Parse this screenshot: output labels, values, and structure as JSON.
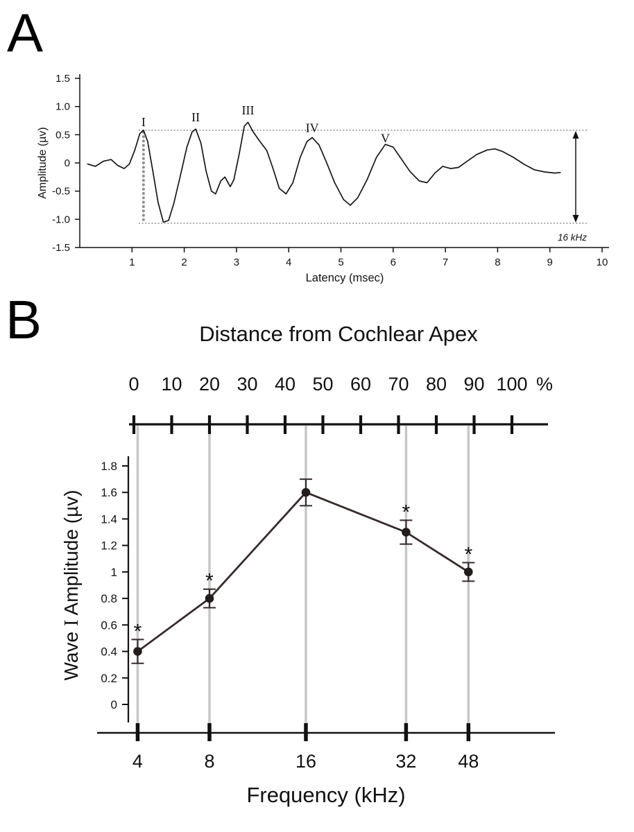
{
  "panels": {
    "a": {
      "letter": "A"
    },
    "b": {
      "letter": "B"
    }
  },
  "chart_data": [
    {
      "panel": "A",
      "type": "line",
      "description": "ABR waveform trace",
      "xlabel": "Latency (msec)",
      "ylabel": "Amplitude (µv)",
      "xlim": [
        0,
        10
      ],
      "ylim": [
        -1.5,
        1.5
      ],
      "x_ticks": [
        1,
        2,
        3,
        4,
        5,
        6,
        7,
        8,
        9,
        10
      ],
      "y_ticks": [
        {
          "v": 1.5,
          "label": "1.5"
        },
        {
          "v": 1.0,
          "label": "1.0"
        },
        {
          "v": 0.5,
          "label": "0.5"
        },
        {
          "v": 0,
          "label": "0"
        },
        {
          "v": -0.5,
          "label": "-0.5"
        },
        {
          "v": -1.0,
          "label": "-1.0"
        },
        {
          "v": -1.5,
          "label": "-1.5"
        }
      ],
      "wave_peak_labels": [
        {
          "label": "I",
          "x": 1.22,
          "y": 0.65
        },
        {
          "label": "II",
          "x": 2.22,
          "y": 0.74
        },
        {
          "label": "III",
          "x": 3.22,
          "y": 0.86
        },
        {
          "label": "IV",
          "x": 4.45,
          "y": 0.55
        },
        {
          "label": "V",
          "x": 5.85,
          "y": 0.36
        }
      ],
      "amplitude_reference": {
        "top": 0.58,
        "bottom": -1.07,
        "marker_x": 1.22
      },
      "stimulus_label": "16 kHz",
      "series": [
        {
          "name": "abr-waveform",
          "points": [
            [
              0.15,
              -0.02
            ],
            [
              0.3,
              -0.06
            ],
            [
              0.45,
              0.03
            ],
            [
              0.6,
              0.06
            ],
            [
              0.72,
              -0.04
            ],
            [
              0.85,
              -0.1
            ],
            [
              0.95,
              -0.02
            ],
            [
              1.05,
              0.22
            ],
            [
              1.15,
              0.52
            ],
            [
              1.22,
              0.58
            ],
            [
              1.3,
              0.38
            ],
            [
              1.4,
              -0.15
            ],
            [
              1.5,
              -0.7
            ],
            [
              1.6,
              -1.05
            ],
            [
              1.7,
              -1.02
            ],
            [
              1.8,
              -0.72
            ],
            [
              1.92,
              -0.25
            ],
            [
              2.05,
              0.28
            ],
            [
              2.15,
              0.55
            ],
            [
              2.22,
              0.6
            ],
            [
              2.32,
              0.35
            ],
            [
              2.42,
              -0.15
            ],
            [
              2.52,
              -0.5
            ],
            [
              2.6,
              -0.55
            ],
            [
              2.7,
              -0.32
            ],
            [
              2.78,
              -0.25
            ],
            [
              2.88,
              -0.42
            ],
            [
              2.95,
              -0.3
            ],
            [
              3.05,
              0.15
            ],
            [
              3.15,
              0.65
            ],
            [
              3.22,
              0.72
            ],
            [
              3.32,
              0.55
            ],
            [
              3.45,
              0.38
            ],
            [
              3.58,
              0.22
            ],
            [
              3.7,
              -0.1
            ],
            [
              3.82,
              -0.45
            ],
            [
              3.95,
              -0.55
            ],
            [
              4.08,
              -0.35
            ],
            [
              4.22,
              0.1
            ],
            [
              4.35,
              0.38
            ],
            [
              4.45,
              0.45
            ],
            [
              4.58,
              0.32
            ],
            [
              4.72,
              0.02
            ],
            [
              4.88,
              -0.35
            ],
            [
              5.05,
              -0.65
            ],
            [
              5.18,
              -0.75
            ],
            [
              5.32,
              -0.62
            ],
            [
              5.5,
              -0.3
            ],
            [
              5.68,
              0.1
            ],
            [
              5.85,
              0.33
            ],
            [
              6.0,
              0.28
            ],
            [
              6.15,
              0.08
            ],
            [
              6.32,
              -0.15
            ],
            [
              6.5,
              -0.32
            ],
            [
              6.65,
              -0.35
            ],
            [
              6.8,
              -0.18
            ],
            [
              6.95,
              -0.06
            ],
            [
              7.1,
              -0.1
            ],
            [
              7.25,
              -0.08
            ],
            [
              7.4,
              0.02
            ],
            [
              7.6,
              0.15
            ],
            [
              7.8,
              0.23
            ],
            [
              7.95,
              0.25
            ],
            [
              8.1,
              0.2
            ],
            [
              8.3,
              0.1
            ],
            [
              8.5,
              -0.02
            ],
            [
              8.7,
              -0.12
            ],
            [
              8.9,
              -0.16
            ],
            [
              9.1,
              -0.18
            ],
            [
              9.2,
              -0.17
            ]
          ]
        }
      ]
    },
    {
      "panel": "B",
      "type": "line",
      "top_axis": {
        "title": "Distance from Cochlear Apex",
        "tick_values": [
          0,
          10,
          20,
          30,
          40,
          50,
          60,
          70,
          80,
          90,
          100
        ],
        "unit_label": "%"
      },
      "xlabel": "Frequency (kHz)",
      "ylabel": "Wave I Amplitude (µv)",
      "ylabel_parts": [
        {
          "text": "Wave ",
          "serif": false
        },
        {
          "text": "I",
          "serif": true
        },
        {
          "text": " Amplitude (µv)",
          "serif": false
        }
      ],
      "ylim": [
        0,
        1.8
      ],
      "y_ticks": [
        {
          "v": 0,
          "label": "0"
        },
        {
          "v": 0.2,
          "label": "0.2"
        },
        {
          "v": 0.4,
          "label": "0.4"
        },
        {
          "v": 0.6,
          "label": "0.6"
        },
        {
          "v": 0.8,
          "label": "0.8"
        },
        {
          "v": 1.0,
          "label": "1"
        },
        {
          "v": 1.2,
          "label": "1.2"
        },
        {
          "v": 1.4,
          "label": "1.4"
        },
        {
          "v": 1.6,
          "label": "1.6"
        },
        {
          "v": 1.8,
          "label": "1.8"
        }
      ],
      "sig_symbol": "*",
      "points": [
        {
          "freq": "4",
          "percent": 1,
          "value": 0.4,
          "error": 0.09,
          "significant": true
        },
        {
          "freq": "8",
          "percent": 20,
          "value": 0.8,
          "error": 0.07,
          "significant": true
        },
        {
          "freq": "16",
          "percent": 45.5,
          "value": 1.6,
          "error": 0.1,
          "significant": false
        },
        {
          "freq": "32",
          "percent": 72,
          "value": 1.3,
          "error": 0.09,
          "significant": true
        },
        {
          "freq": "48",
          "percent": 88.5,
          "value": 1.0,
          "error": 0.07,
          "significant": true
        }
      ]
    }
  ]
}
